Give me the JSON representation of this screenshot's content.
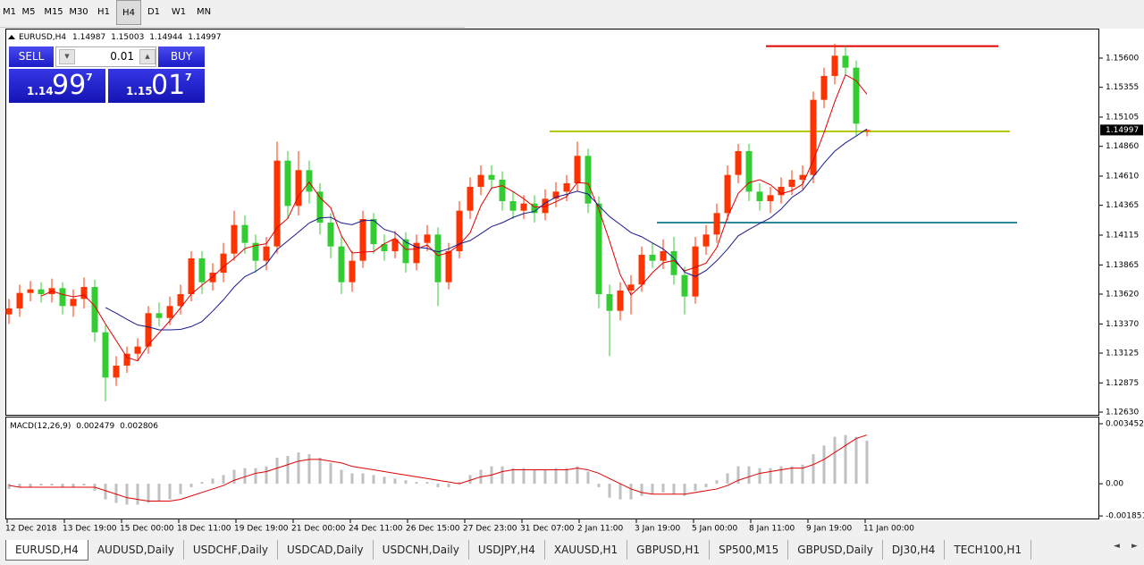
{
  "toolbar": {
    "timeframes": [
      "M1",
      "M5",
      "M15",
      "M30",
      "H1",
      "H4",
      "D1",
      "W1",
      "MN"
    ]
  },
  "trade_panel": {
    "sell": "SELL",
    "buy": "BUY",
    "lot": "0.01",
    "bid": {
      "big": "1.14",
      "pips": "99",
      "frac": "7"
    },
    "ask": {
      "big": "1.15",
      "pips": "01",
      "frac": "7"
    }
  },
  "chart_data": [
    {
      "type": "candlestick",
      "title": "EURUSD,H4",
      "up_color": "#ff3300",
      "down_color": "#33cc33",
      "ma_colors": [
        "#e00000",
        "#1a1a8c"
      ],
      "x_labels": [
        "12 Dec 2018",
        "13 Dec 19:00",
        "15 Dec 00:00",
        "18 Dec 11:00",
        "19 Dec 19:00",
        "21 Dec 00:00",
        "24 Dec 11:00",
        "26 Dec 15:00",
        "27 Dec 23:00",
        "31 Dec 07:00",
        "2 Jan 11:00",
        "3 Jan 19:00",
        "5 Jan 00:00",
        "8 Jan 11:00",
        "9 Jan 19:00",
        "11 Jan 00:00"
      ],
      "open": [
        1.1345,
        1.135,
        1.1363,
        1.1366,
        1.1362,
        1.1367,
        1.1352,
        1.1358,
        1.1368,
        1.133,
        1.1292,
        1.1302,
        1.1312,
        1.1318,
        1.1346,
        1.1342,
        1.1352,
        1.1362,
        1.1392,
        1.1372,
        1.138,
        1.1396,
        1.142,
        1.1405,
        1.139,
        1.1402,
        1.1474,
        1.1436,
        1.1466,
        1.1448,
        1.1422,
        1.1402,
        1.1372,
        1.139,
        1.1425,
        1.1404,
        1.1398,
        1.1408,
        1.1388,
        1.1405,
        1.1412,
        1.1372,
        1.1398,
        1.1432,
        1.1452,
        1.1462,
        1.1458,
        1.144,
        1.1432,
        1.1438,
        1.143,
        1.1442,
        1.1448,
        1.1455,
        1.1478,
        1.1438,
        1.1362,
        1.1348,
        1.1365,
        1.137,
        1.1395,
        1.139,
        1.1398,
        1.1378,
        1.136,
        1.1402,
        1.1412,
        1.143,
        1.1462,
        1.1482,
        1.1448,
        1.144,
        1.1445,
        1.1452,
        1.1458,
        1.1462,
        1.1525,
        1.1545,
        1.1562,
        1.1552,
        1.14987
      ],
      "high": [
        1.1358,
        1.137,
        1.1373,
        1.1372,
        1.1375,
        1.1372,
        1.1366,
        1.1376,
        1.1374,
        1.1336,
        1.131,
        1.1318,
        1.1325,
        1.1352,
        1.1355,
        1.136,
        1.137,
        1.1398,
        1.1398,
        1.1388,
        1.1405,
        1.1432,
        1.1428,
        1.1412,
        1.141,
        1.149,
        1.1482,
        1.1482,
        1.1474,
        1.1455,
        1.143,
        1.141,
        1.1398,
        1.1432,
        1.143,
        1.1412,
        1.1415,
        1.1414,
        1.1412,
        1.142,
        1.1418,
        1.1405,
        1.144,
        1.146,
        1.147,
        1.147,
        1.1465,
        1.1448,
        1.1445,
        1.1445,
        1.145,
        1.1456,
        1.1462,
        1.149,
        1.1484,
        1.1444,
        1.137,
        1.1372,
        1.1378,
        1.1402,
        1.1405,
        1.1408,
        1.141,
        1.1385,
        1.141,
        1.142,
        1.1438,
        1.147,
        1.1488,
        1.1488,
        1.1455,
        1.1452,
        1.146,
        1.1466,
        1.147,
        1.1532,
        1.1552,
        1.1572,
        1.157,
        1.1558,
        1.15003
      ],
      "low": [
        1.1337,
        1.1343,
        1.1356,
        1.1355,
        1.1355,
        1.1345,
        1.1343,
        1.135,
        1.1322,
        1.1272,
        1.1285,
        1.1296,
        1.1306,
        1.1312,
        1.1335,
        1.1336,
        1.1345,
        1.1356,
        1.1362,
        1.1365,
        1.1372,
        1.139,
        1.1396,
        1.138,
        1.1382,
        1.1396,
        1.1425,
        1.1428,
        1.1438,
        1.1412,
        1.1392,
        1.1362,
        1.1364,
        1.1384,
        1.1396,
        1.139,
        1.1392,
        1.138,
        1.1382,
        1.1398,
        1.1352,
        1.1366,
        1.1392,
        1.1425,
        1.1445,
        1.145,
        1.1432,
        1.1425,
        1.1425,
        1.1422,
        1.1424,
        1.1435,
        1.144,
        1.1448,
        1.143,
        1.135,
        1.131,
        1.134,
        1.1345,
        1.1364,
        1.1384,
        1.1383,
        1.137,
        1.1345,
        1.1354,
        1.1395,
        1.1405,
        1.1424,
        1.1455,
        1.144,
        1.1432,
        1.143,
        1.1438,
        1.1445,
        1.145,
        1.1455,
        1.1518,
        1.1538,
        1.1545,
        1.1495,
        1.14944
      ],
      "close": [
        1.135,
        1.1363,
        1.1366,
        1.1362,
        1.1367,
        1.1352,
        1.1358,
        1.1368,
        1.133,
        1.1292,
        1.1302,
        1.1312,
        1.1318,
        1.1346,
        1.1342,
        1.1352,
        1.1362,
        1.1392,
        1.1372,
        1.138,
        1.1396,
        1.142,
        1.1405,
        1.139,
        1.1402,
        1.1474,
        1.1436,
        1.1466,
        1.1448,
        1.1422,
        1.1402,
        1.1372,
        1.139,
        1.1425,
        1.1404,
        1.1398,
        1.1408,
        1.1388,
        1.1405,
        1.1412,
        1.1372,
        1.1398,
        1.1432,
        1.1452,
        1.1462,
        1.1458,
        1.144,
        1.1432,
        1.1438,
        1.143,
        1.1442,
        1.1448,
        1.1455,
        1.1478,
        1.1438,
        1.1362,
        1.1348,
        1.1365,
        1.137,
        1.1395,
        1.139,
        1.1398,
        1.1378,
        1.136,
        1.1402,
        1.1412,
        1.143,
        1.1462,
        1.1482,
        1.1448,
        1.144,
        1.1445,
        1.1452,
        1.1458,
        1.1462,
        1.1525,
        1.1545,
        1.1562,
        1.1552,
        1.1505,
        1.14997
      ],
      "ylim": [
        1.12615,
        1.1584
      ],
      "yticks": [
        {
          "value": 1.156,
          "label": "1.15600"
        },
        1.15355,
        1.15105,
        {
          "value": 1.1486,
          "label": "1.14860"
        },
        {
          "value": 1.1461,
          "label": "1.14610"
        },
        1.14365,
        1.14115,
        1.13865,
        {
          "value": 1.1362,
          "label": "1.13620"
        },
        {
          "value": 1.1337,
          "label": "1.13370"
        },
        1.13125,
        1.12875,
        {
          "value": 1.1263,
          "label": "1.12630"
        }
      ],
      "hlines": [
        {
          "value": 1.157,
          "color": "#e00000"
        },
        {
          "value": 1.14985,
          "color": "#b5c800"
        },
        {
          "value": 1.1422,
          "color": "#2a8a9a"
        }
      ]
    },
    {
      "type": "bar",
      "title": "MACD(12,26,9)",
      "color": "#c0c0c0",
      "signal_color": "#e00000",
      "values": [
        -0.0003,
        -0.0002,
        -0.0002,
        -0.0001,
        -0.0001,
        -0.0002,
        -0.0002,
        -0.0001,
        -0.0004,
        -0.0009,
        -0.0011,
        -0.0012,
        -0.0012,
        -0.0011,
        -0.001,
        -0.0009,
        -0.0006,
        -0.0002,
        0.0001,
        0.0003,
        0.0005,
        0.0008,
        0.0009,
        0.0009,
        0.001,
        0.0015,
        0.0016,
        0.0018,
        0.0017,
        0.0015,
        0.0012,
        0.0008,
        0.0006,
        0.0006,
        0.0005,
        0.0004,
        0.0003,
        0.0002,
        0.0001,
        0.0001,
        -0.0002,
        -0.0002,
        0.0001,
        0.0005,
        0.0008,
        0.001,
        0.001,
        0.0009,
        0.0009,
        0.0008,
        0.0008,
        0.0009,
        0.0009,
        0.001,
        0.0007,
        -0.0002,
        -0.0008,
        -0.0009,
        -0.0009,
        -0.0007,
        -0.0006,
        -0.0005,
        -0.0006,
        -0.0007,
        -0.0004,
        -0.0002,
        0.0002,
        0.0006,
        0.001,
        0.001,
        0.0009,
        0.0009,
        0.001,
        0.001,
        0.0011,
        0.0017,
        0.0022,
        0.0027,
        0.0028,
        0.0027,
        0.002479
      ],
      "signal": [
        -0.0001,
        -0.0002,
        -0.0002,
        -0.0002,
        -0.0002,
        -0.0002,
        -0.0002,
        -0.0002,
        -0.0002,
        -0.0004,
        -0.0006,
        -0.0008,
        -0.0009,
        -0.001,
        -0.001,
        -0.001,
        -0.0009,
        -0.0007,
        -0.0005,
        -0.0003,
        -0.0001,
        0.0002,
        0.0004,
        0.0006,
        0.0007,
        0.0009,
        0.0011,
        0.0013,
        0.0014,
        0.0014,
        0.0013,
        0.0012,
        0.001,
        0.0009,
        0.0008,
        0.0007,
        0.0006,
        0.0005,
        0.0004,
        0.0003,
        0.0002,
        0.0001,
        0,
        0.0002,
        0.0004,
        0.0005,
        0.0007,
        0.0008,
        0.0008,
        0.0008,
        0.0008,
        0.0008,
        0.0008,
        0.0009,
        0.0008,
        0.0006,
        0.0003,
        0,
        -0.0003,
        -0.0005,
        -0.0006,
        -0.0006,
        -0.0006,
        -0.0006,
        -0.0005,
        -0.0004,
        -0.0003,
        -0.0001,
        0.0002,
        0.0004,
        0.0006,
        0.0007,
        0.0008,
        0.0009,
        0.0009,
        0.0011,
        0.0014,
        0.0018,
        0.0022,
        0.0026,
        0.002806
      ],
      "ylim": [
        -0.002,
        0.00376
      ],
      "yticks": [
        0.003452,
        {
          "value": 0,
          "label": "0.00"
        },
        -0.001851
      ]
    }
  ],
  "tabs": [
    "EURUSD,H4",
    "AUDUSD,Daily",
    "USDCHF,Daily",
    "USDCAD,Daily",
    "USDCNH,Daily",
    "USDJPY,H4",
    "XAUUSD,H1",
    "GBPUSD,H1",
    "SP500,M15",
    "GBPUSD,Daily",
    "DJ30,H4",
    "TECH100,H1"
  ]
}
